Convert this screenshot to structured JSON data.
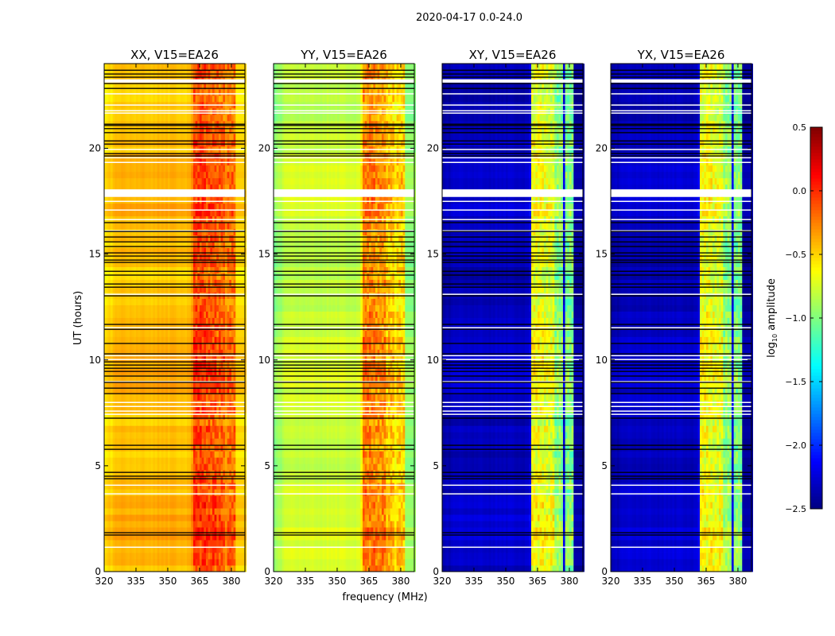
{
  "chart_data": {
    "type": "heatmap",
    "title": "2020-04-17 0.0-24.0",
    "xlabel": "frequency (MHz)",
    "ylabel": "UT (hours)",
    "xlim": [
      320,
      386.4
    ],
    "ylim": [
      0,
      24
    ],
    "xticks": [
      "320",
      "335",
      "350",
      "365",
      "380"
    ],
    "yticks": [
      "0",
      "5",
      "10",
      "15",
      "20"
    ],
    "colorbar": {
      "label_main": "log",
      "label_sub": "10",
      "label_rest": " amplitude",
      "colormap": "jet",
      "range": [
        -2.5,
        0.5
      ],
      "ticks": [
        "0.5",
        "0.0",
        "−0.5",
        "−1.0",
        "−1.5",
        "−2.0",
        "−2.5"
      ],
      "tick_values": [
        0.5,
        0.0,
        -0.5,
        -1.0,
        -1.5,
        -2.0,
        -2.5
      ]
    },
    "spectral_bands_mhz": [
      [
        362,
        367.5
      ],
      [
        368.5,
        372.5
      ],
      [
        373,
        377.2
      ],
      [
        378,
        382
      ]
    ],
    "panels": [
      {
        "title": "XX, V15=EA26",
        "background": -0.42,
        "edge": -0.55,
        "bands": [
          -0.05,
          -0.1,
          -0.15,
          -0.2
        ],
        "gap": -0.3,
        "high_band_edge": -0.5
      },
      {
        "title": "YY, V15=EA26",
        "background": -0.78,
        "edge": -1.0,
        "bands": [
          -0.25,
          -0.3,
          -0.45,
          -0.5
        ],
        "gap": -0.6,
        "high_band_edge": -0.95
      },
      {
        "title": "XY, V15=EA26",
        "background": -2.3,
        "edge": -2.4,
        "bands": [
          -0.65,
          -0.7,
          -0.95,
          -1.0
        ],
        "gap": -2.2,
        "high_band_edge": -2.4
      },
      {
        "title": "YX, V15=EA26",
        "background": -2.3,
        "edge": -2.4,
        "bands": [
          -0.65,
          -0.7,
          -0.95,
          -1.0
        ],
        "gap": -2.2,
        "high_band_edge": -2.4
      }
    ],
    "flagged_hours_white": [
      [
        23.1,
        23.26
      ],
      [
        22.55,
        22.6
      ],
      [
        22.02,
        22.07
      ],
      [
        21.76,
        21.8
      ],
      [
        21.65,
        21.69
      ],
      [
        19.92,
        19.97
      ],
      [
        19.54,
        19.58
      ],
      [
        19.32,
        19.36
      ],
      [
        17.7,
        18.06
      ],
      [
        17.48,
        17.52
      ],
      [
        17.07,
        17.11
      ],
      [
        16.62,
        16.66
      ],
      [
        16.09,
        16.13
      ],
      [
        13.08,
        13.13
      ],
      [
        11.51,
        11.55
      ],
      [
        10.19,
        10.23
      ],
      [
        10.01,
        10.05
      ],
      [
        8.95,
        9.0
      ],
      [
        7.98,
        8.02
      ],
      [
        7.79,
        7.83
      ],
      [
        7.57,
        7.61
      ],
      [
        7.42,
        7.46
      ],
      [
        4.07,
        4.11
      ],
      [
        3.66,
        3.7
      ],
      [
        1.14,
        1.18
      ]
    ],
    "flagged_hours_black": [
      23.69,
      23.51,
      23.36,
      23.06,
      22.83,
      21.14,
      21.08,
      20.93,
      20.74,
      20.35,
      20.2,
      19.75,
      19.64,
      16.49,
      16.07,
      15.81,
      15.58,
      15.36,
      15.06,
      14.91,
      14.72,
      14.61,
      14.19,
      14.01,
      13.59,
      13.44,
      13.03,
      11.68,
      11.45,
      10.78,
      10.29,
      9.91,
      9.76,
      9.61,
      9.46,
      9.24,
      8.94,
      8.67,
      8.41,
      7.25,
      5.97,
      5.78,
      4.69,
      4.51,
      4.39,
      1.84,
      1.73
    ]
  }
}
